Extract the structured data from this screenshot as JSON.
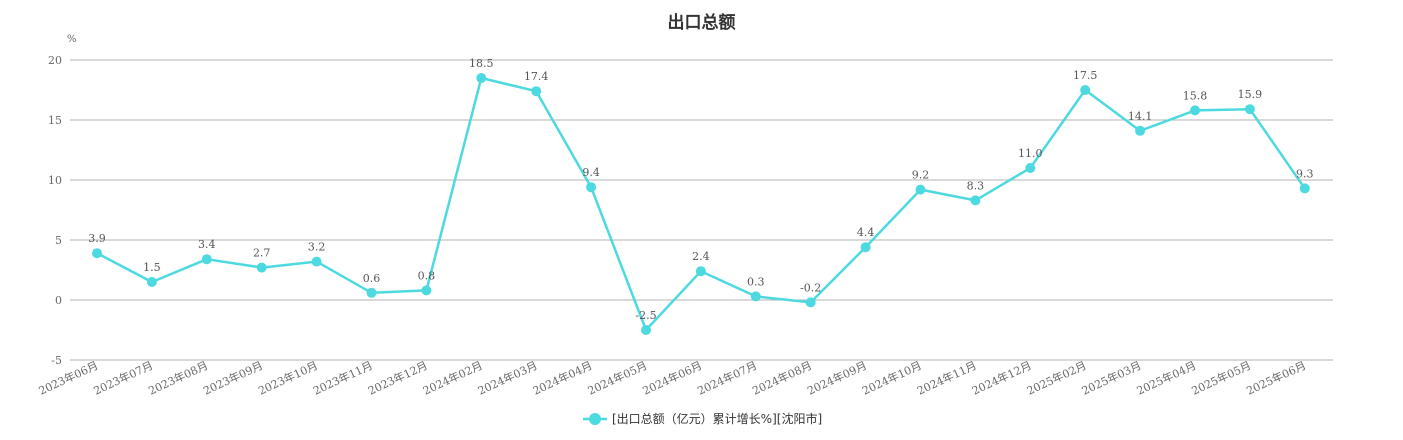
{
  "chart_data": {
    "type": "line",
    "title": "出口总额",
    "ylabel": "%",
    "ylim": [
      -5,
      20
    ],
    "yticks": [
      -5,
      0,
      5,
      10,
      15,
      20
    ],
    "categories": [
      "2023年06月",
      "2023年07月",
      "2023年08月",
      "2023年09月",
      "2023年10月",
      "2023年11月",
      "2023年12月",
      "2024年02月",
      "2024年03月",
      "2024年04月",
      "2024年05月",
      "2024年06月",
      "2024年07月",
      "2024年08月",
      "2024年09月",
      "2024年10月",
      "2024年11月",
      "2024年12月",
      "2025年02月",
      "2025年03月",
      "2025年04月",
      "2025年05月",
      "2025年06月"
    ],
    "series": [
      {
        "name": "[出口总额（亿元）累计增长%][沈阳市]",
        "color": "#4dd9e0",
        "values": [
          3.9,
          1.5,
          3.4,
          2.7,
          3.2,
          0.6,
          0.8,
          18.5,
          17.4,
          9.4,
          -2.5,
          2.4,
          0.3,
          -0.2,
          4.4,
          9.2,
          8.3,
          11.0,
          17.5,
          14.1,
          15.8,
          15.9,
          9.3
        ]
      }
    ],
    "grid": true,
    "legend": "bottom-center"
  }
}
